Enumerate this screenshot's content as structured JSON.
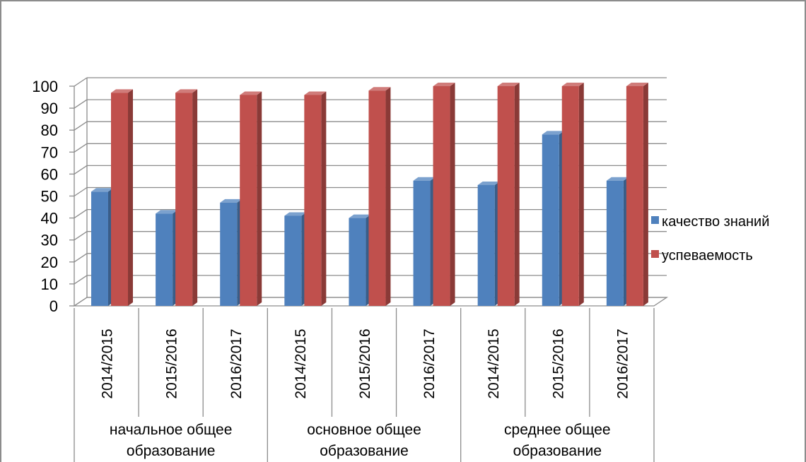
{
  "chart_data": {
    "type": "bar",
    "title": "",
    "xlabel": "",
    "ylabel": "",
    "ylim": [
      0,
      100
    ],
    "yticks": [
      0,
      10,
      20,
      30,
      40,
      50,
      60,
      70,
      80,
      90,
      100
    ],
    "grid": true,
    "legend_position": "right",
    "categories": [
      "2014/2015",
      "2015/2016",
      "2016/2017",
      "2014/2015",
      "2015/2016",
      "2016/2017",
      "2014/2015",
      "2015/2016",
      "2016/2017"
    ],
    "groups": [
      {
        "label": [
          "начальное общее",
          "образование"
        ],
        "span": [
          0,
          2
        ]
      },
      {
        "label": [
          "основное общее",
          "образование"
        ],
        "span": [
          3,
          5
        ]
      },
      {
        "label": [
          "среднее общее",
          "образование"
        ],
        "span": [
          6,
          8
        ]
      }
    ],
    "series": [
      {
        "name": "качество знаний",
        "color": "#4f81bd",
        "values": [
          52,
          42,
          47,
          41,
          40,
          57,
          55,
          78,
          57
        ]
      },
      {
        "name": "успеваемость",
        "color": "#c0504d",
        "values": [
          97,
          97,
          96,
          96,
          98,
          100,
          100,
          100,
          100
        ]
      }
    ]
  }
}
